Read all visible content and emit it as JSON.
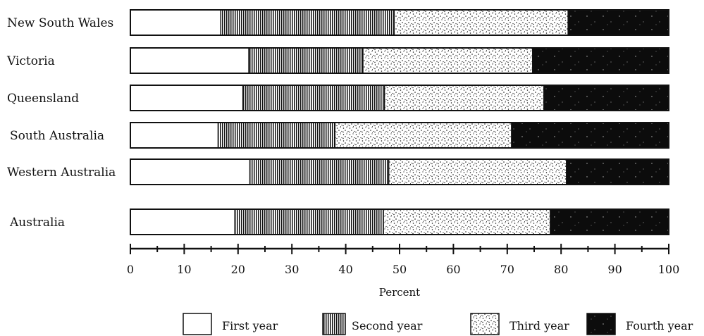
{
  "chart_data": {
    "type": "bar",
    "orientation": "horizontal",
    "stacked": true,
    "normalized": true,
    "xlabel": "Percent",
    "xlim": [
      0,
      100
    ],
    "xticks": [
      0,
      10,
      20,
      30,
      40,
      50,
      60,
      70,
      80,
      90,
      100
    ],
    "categories": [
      "New South Wales",
      "Victoria",
      "Queensland",
      "South Australia",
      "Western Australia",
      "Australia"
    ],
    "series": [
      {
        "name": "First year",
        "pattern": "white",
        "values": [
          16.8,
          22.0,
          20.9,
          16.3,
          22.2,
          19.4
        ]
      },
      {
        "name": "Second year",
        "pattern": "vertical-hatch",
        "values": [
          32.2,
          21.2,
          26.3,
          21.7,
          25.8,
          27.6
        ]
      },
      {
        "name": "Third year",
        "pattern": "stipple",
        "values": [
          32.3,
          31.5,
          29.6,
          32.8,
          33.0,
          31.0
        ]
      },
      {
        "name": "Fourth year",
        "pattern": "black",
        "values": [
          18.7,
          25.3,
          23.2,
          29.2,
          19.0,
          22.0
        ]
      }
    ],
    "legend_position": "bottom",
    "colors": {
      "ink": "#111111",
      "paper": "#ffffff",
      "dark_fill": "#0c0c0c"
    }
  }
}
